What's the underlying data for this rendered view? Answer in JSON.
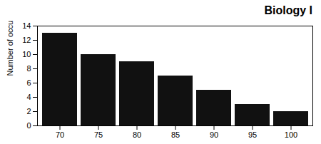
{
  "chart_data": {
    "type": "bar",
    "title": "Biology I",
    "ylabel": "Number of occurences",
    "categories": [
      70,
      75,
      80,
      85,
      90,
      95,
      100
    ],
    "values": [
      13,
      10,
      9,
      7,
      5,
      3,
      2
    ],
    "color": "#111111",
    "ylim": [
      0,
      14
    ],
    "yticks": [
      0,
      2,
      4,
      6,
      8,
      10,
      12,
      14
    ],
    "grid": false
  }
}
